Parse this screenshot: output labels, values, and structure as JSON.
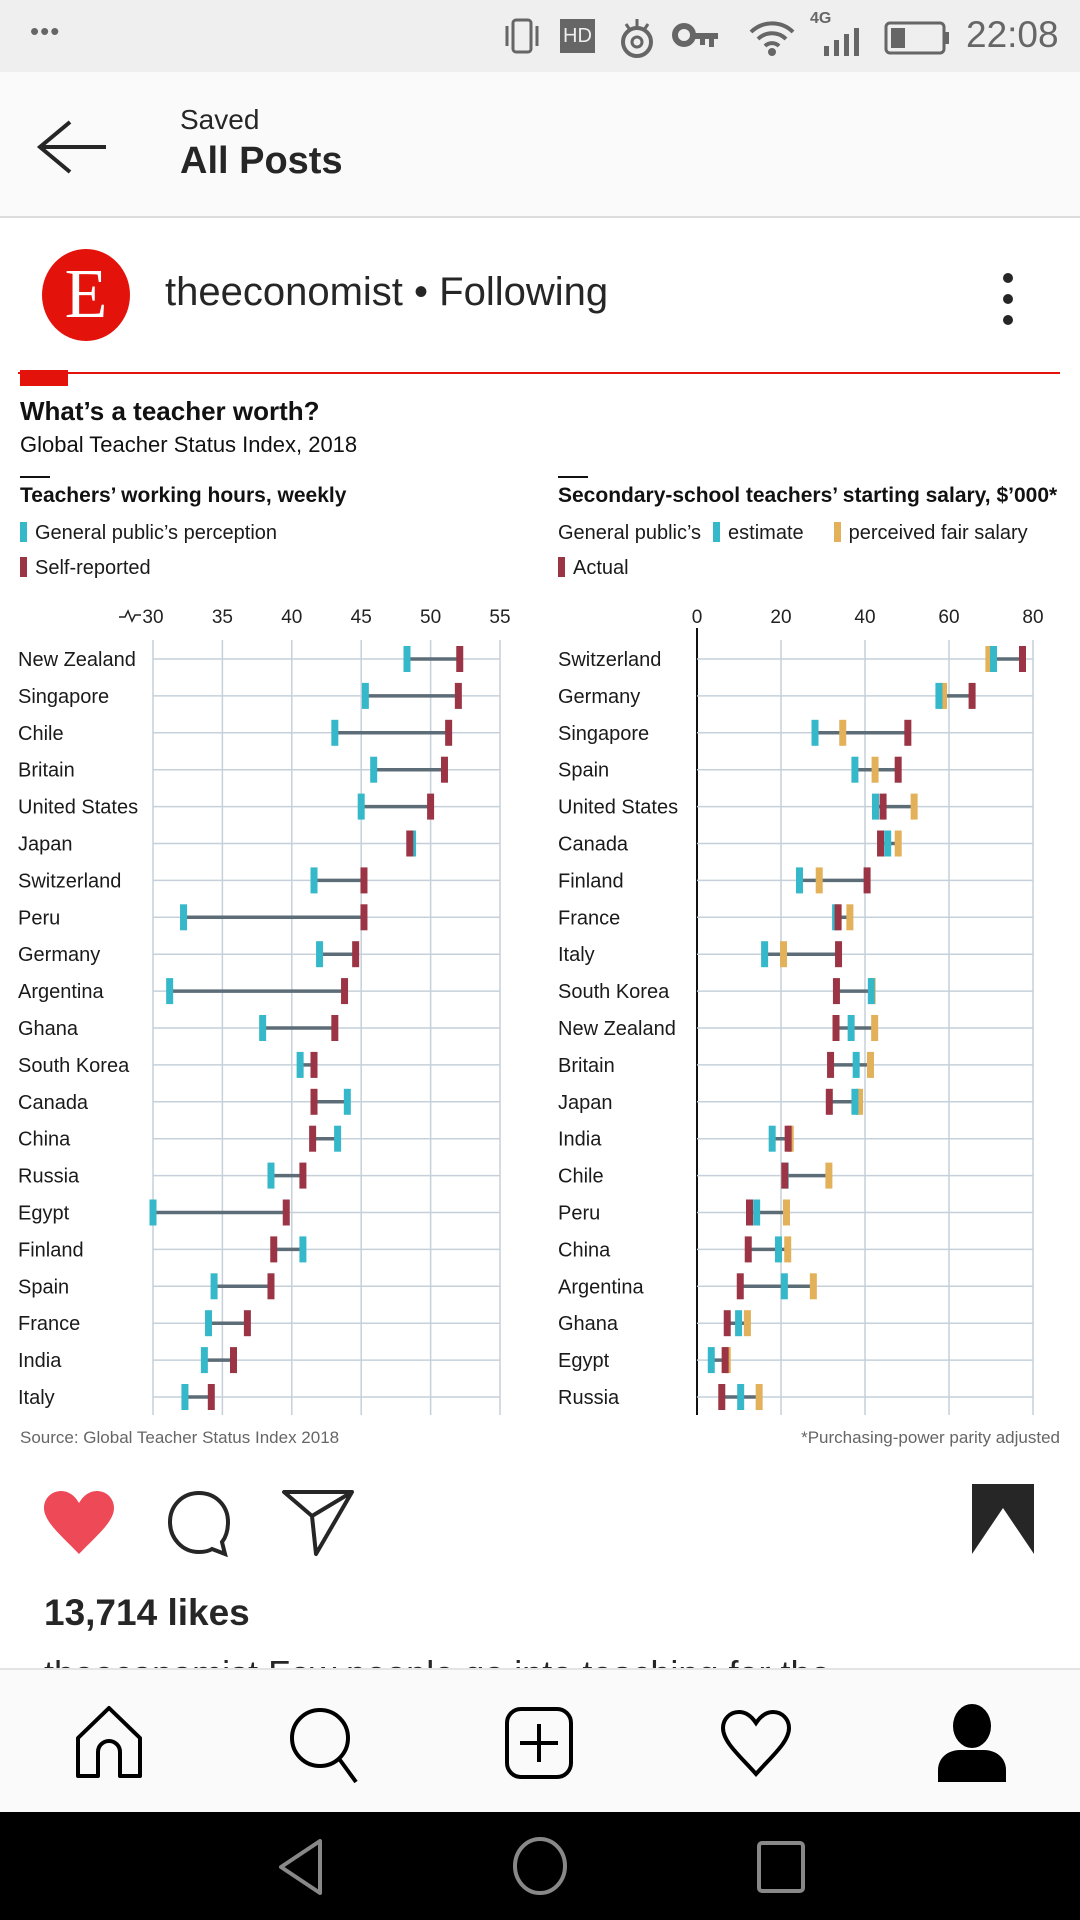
{
  "status_bar": {
    "time": "22:08",
    "network": "4G",
    "hd_badge": "HD",
    "overflow": "•••",
    "icons": [
      "vibrate-icon",
      "hd-icon",
      "eye-icon",
      "key-icon",
      "wifi-icon",
      "signal-icon",
      "battery-icon"
    ]
  },
  "header": {
    "subtitle": "Saved",
    "title": "All Posts",
    "back_icon": "arrow-left-icon"
  },
  "post": {
    "avatar_letter": "E",
    "username": "theeconomist",
    "separator": " • ",
    "follow_status": "Following",
    "likes": "13,714 likes",
    "caption": "theeconomist Few people go into teaching for the"
  },
  "colors": {
    "perception": "#35b8c9",
    "self_reported": "#9b3444",
    "fair": "#e2b15a",
    "brand_red": "#e3120b",
    "like_red": "#ed4956"
  },
  "chart_data": [
    {
      "type": "dumbbell",
      "title": "What’s a teacher worth?",
      "subtitle": "Global Teacher Status Index, 2018",
      "panel_title": "Teachers’ working hours, weekly",
      "legend": [
        "General public’s perception",
        "Self-reported"
      ],
      "xlim": [
        30,
        55
      ],
      "xticks": [
        "30",
        "35",
        "40",
        "45",
        "50",
        "55"
      ],
      "xticks_values": [
        30,
        35,
        40,
        45,
        50,
        55
      ],
      "axis_break": true,
      "grid": true,
      "categories": [
        "New Zealand",
        "Singapore",
        "Chile",
        "Britain",
        "United States",
        "Japan",
        "Switzerland",
        "Peru",
        "Germany",
        "Argentina",
        "Ghana",
        "South Korea",
        "Canada",
        "China",
        "Russia",
        "Egypt",
        "Finland",
        "Spain",
        "France",
        "India",
        "Italy"
      ],
      "series": [
        {
          "name": "General public’s perception",
          "values": [
            48.3,
            45.3,
            43.1,
            45.9,
            45.0,
            48.7,
            41.6,
            32.2,
            42.0,
            31.2,
            37.9,
            40.6,
            44.0,
            43.3,
            38.5,
            30.0,
            40.8,
            34.4,
            34.0,
            33.7,
            32.3
          ]
        },
        {
          "name": "Self-reported",
          "values": [
            52.1,
            52.0,
            51.3,
            51.0,
            50.0,
            48.5,
            45.2,
            45.2,
            44.6,
            43.8,
            43.1,
            41.6,
            41.6,
            41.5,
            40.8,
            39.6,
            38.7,
            38.5,
            36.8,
            35.8,
            34.2
          ]
        }
      ],
      "source": "Source: Global Teacher Status Index 2018"
    },
    {
      "type": "dumbbell",
      "panel_title": "Secondary-school teachers’ starting salary, $’000*",
      "legend_prefix": "General public’s",
      "legend": [
        "estimate",
        "perceived fair salary",
        "Actual"
      ],
      "xlim": [
        0,
        80
      ],
      "xticks": [
        "0",
        "20",
        "40",
        "60",
        "80"
      ],
      "xticks_values": [
        0,
        20,
        40,
        60,
        80
      ],
      "grid": true,
      "categories": [
        "Switzerland",
        "Germany",
        "Singapore",
        "Spain",
        "United States",
        "Canada",
        "Finland",
        "France",
        "Italy",
        "South Korea",
        "New Zealand",
        "Britain",
        "Japan",
        "India",
        "Chile",
        "Peru",
        "China",
        "Argentina",
        "Ghana",
        "Egypt",
        "Russia"
      ],
      "series": [
        {
          "name": "estimate",
          "values": [
            70.6,
            57.6,
            28.1,
            37.6,
            42.5,
            45.4,
            24.4,
            33.0,
            16.1,
            41.5,
            36.7,
            37.9,
            37.6,
            17.9,
            21.0,
            14.2,
            19.4,
            20.8,
            9.9,
            3.4,
            10.4
          ]
        },
        {
          "name": "perceived fair salary",
          "values": [
            69.5,
            58.7,
            34.7,
            42.4,
            51.7,
            47.9,
            29.1,
            36.4,
            20.6,
            41.7,
            42.3,
            41.3,
            38.7,
            22.2,
            31.4,
            21.3,
            21.6,
            27.7,
            12.0,
            7.2,
            14.8
          ]
        },
        {
          "name": "Actual",
          "values": [
            77.5,
            65.5,
            50.2,
            47.9,
            44.3,
            43.7,
            40.5,
            33.6,
            33.7,
            33.2,
            33.1,
            31.8,
            31.5,
            21.7,
            20.9,
            12.5,
            12.2,
            10.3,
            7.2,
            6.7,
            5.9
          ]
        }
      ],
      "footnote": "*Purchasing-power parity adjusted"
    }
  ],
  "actions": {
    "icons": [
      "heart-filled-icon",
      "comment-icon",
      "share-icon",
      "bookmark-filled-icon"
    ]
  },
  "bottom_nav": {
    "items": [
      "home",
      "search",
      "new-post",
      "activity",
      "profile"
    ]
  },
  "system_nav": {
    "items": [
      "back",
      "home",
      "recents"
    ]
  }
}
